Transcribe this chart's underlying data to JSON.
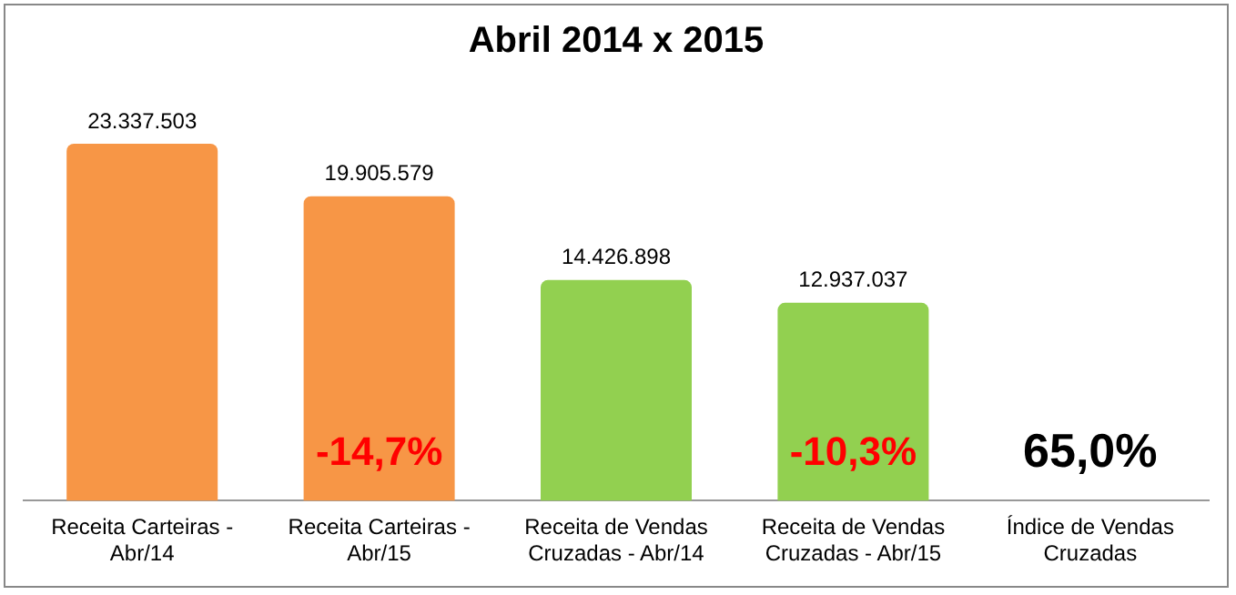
{
  "chart_data": {
    "type": "bar",
    "title": "Abril 2014 x 2015",
    "categories": [
      "Receita Carteiras - Abr/14",
      "Receita Carteiras - Abr/15",
      "Receita de Vendas Cruzadas - Abr/14",
      "Receita de Vendas Cruzadas - Abr/15",
      "Índice de Vendas Cruzadas"
    ],
    "values": [
      23337503,
      19905579,
      14426898,
      12937037,
      null
    ],
    "colors": [
      "#f79646",
      "#f79646",
      "#92d050",
      "#92d050",
      "#92d050"
    ],
    "value_labels": [
      "23.337.503",
      "19.905.579",
      "14.426.898",
      "12.937.037",
      null
    ],
    "annotations": [
      "-14,7%",
      "-10,3%",
      "65,0%"
    ],
    "grid": false,
    "legend": false,
    "tick_labels": "x"
  }
}
